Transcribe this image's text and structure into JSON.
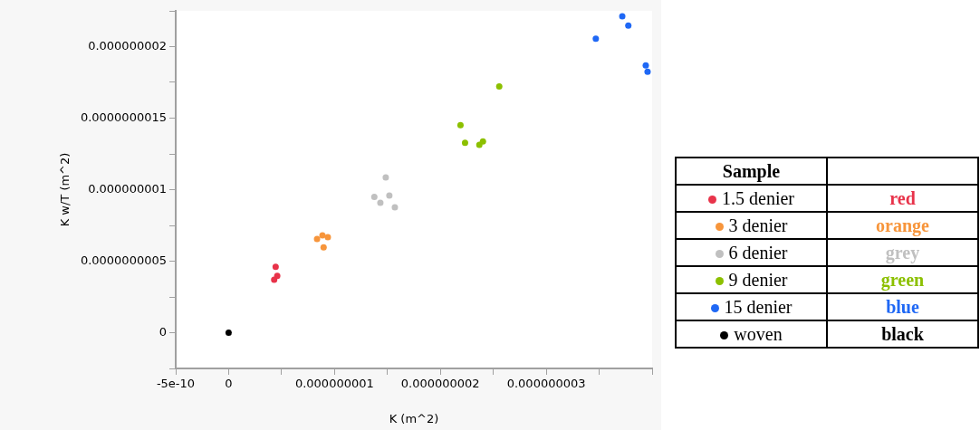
{
  "chart_data": {
    "type": "scatter",
    "xlabel": "K (m^2)",
    "ylabel": "K w/T (m^2)",
    "legend_title": "Sample",
    "legend": "right",
    "marker": "circle",
    "grid": false,
    "xlim": [
      -5e-10,
      4e-09
    ],
    "xticks": [
      {
        "value": -5e-10,
        "label": "-5e-10"
      },
      {
        "value": 0,
        "label": "0"
      },
      {
        "value": 5e-10,
        "label": null
      },
      {
        "value": 1e-09,
        "label": "0.000000001"
      },
      {
        "value": 1.5e-09,
        "label": null
      },
      {
        "value": 2e-09,
        "label": "0.000000002"
      },
      {
        "value": 2.5e-09,
        "label": null
      },
      {
        "value": 3e-09,
        "label": "0.000000003"
      },
      {
        "value": 3.5e-09,
        "label": null
      },
      {
        "value": 4e-09,
        "label": null
      }
    ],
    "ylim": [
      -2.5e-10,
      2.25e-09
    ],
    "yticks": [
      {
        "value": -2.5e-10,
        "label": null
      },
      {
        "value": 0,
        "label": "0"
      },
      {
        "value": 2.5e-10,
        "label": null
      },
      {
        "value": 5e-10,
        "label": "0.0000000005"
      },
      {
        "value": 7.5e-10,
        "label": null
      },
      {
        "value": 1e-09,
        "label": "0.000000001"
      },
      {
        "value": 1.25e-09,
        "label": null
      },
      {
        "value": 1.5e-09,
        "label": "0.0000000015"
      },
      {
        "value": 1.75e-09,
        "label": null
      },
      {
        "value": 2e-09,
        "label": "0.000000002"
      },
      {
        "value": 2.25e-09,
        "label": null
      }
    ],
    "annotations": [
      "red",
      "orange",
      "grey",
      "green",
      "blue",
      "black"
    ],
    "series": [
      {
        "name": "1.5 denier",
        "color": "#e8334a",
        "x": [
          4.44e-10,
          4.59e-10,
          4.3e-10
        ],
        "values": [
          4.6e-10,
          3.97e-10,
          3.7e-10
        ]
      },
      {
        "name": "3 denier",
        "color": "#f7953b",
        "x": [
          8.35e-10,
          8.86e-10,
          9.37e-10,
          8.97e-10
        ],
        "values": [
          6.55e-10,
          6.8e-10,
          6.68e-10,
          5.96e-10
        ]
      },
      {
        "name": "6 denier",
        "color": "#c0c0c0",
        "x": [
          1.484e-09,
          1.376e-09,
          1.433e-09,
          1.518e-09,
          1.57e-09
        ],
        "values": [
          1.086e-09,
          9.5e-10,
          9.09e-10,
          9.59e-10,
          8.77e-10
        ]
      },
      {
        "name": "9 denier",
        "color": "#8cc000",
        "x": [
          2.19e-09,
          2.233e-09,
          2.368e-09,
          2.402e-09,
          2.556e-09
        ],
        "values": [
          1.451e-09,
          1.327e-09,
          1.314e-09,
          1.337e-09,
          1.722e-09
        ]
      },
      {
        "name": "15 denier",
        "color": "#1f68f5",
        "x": [
          3.468e-09,
          3.718e-09,
          3.775e-09,
          3.94e-09,
          3.957e-09
        ],
        "values": [
          2.056e-09,
          2.212e-09,
          2.147e-09,
          1.869e-09,
          1.825e-09
        ]
      },
      {
        "name": "woven",
        "color": "#000000",
        "x": [
          0
        ],
        "values": [
          0
        ]
      }
    ]
  }
}
